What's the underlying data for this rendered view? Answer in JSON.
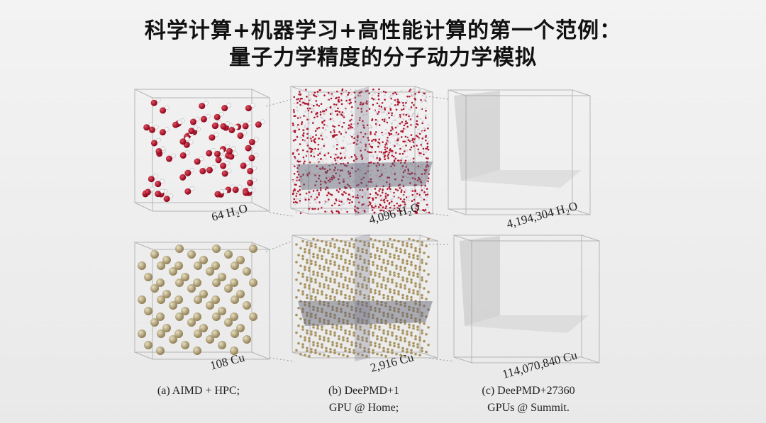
{
  "title": {
    "lines": [
      "科学计算+机器学习+高性能计算的第一个范例：",
      "量子力学精度的分子动力学模拟"
    ]
  },
  "figure": {
    "rows": [
      {
        "labels": [
          "64 H₂O",
          "4,096 H₂O",
          "4,194,304 H₂O"
        ]
      },
      {
        "labels": [
          "108 Cu",
          "2,916 Cu",
          "114,070,840 Cu"
        ]
      }
    ],
    "captions": [
      {
        "lines": [
          "(a) AIMD + HPC;"
        ]
      },
      {
        "lines": [
          "(b) DeePMD+1",
          "GPU @ Home;"
        ]
      },
      {
        "lines": [
          "(c) DeePMD+27360",
          "GPUs @ Summit."
        ]
      }
    ]
  }
}
